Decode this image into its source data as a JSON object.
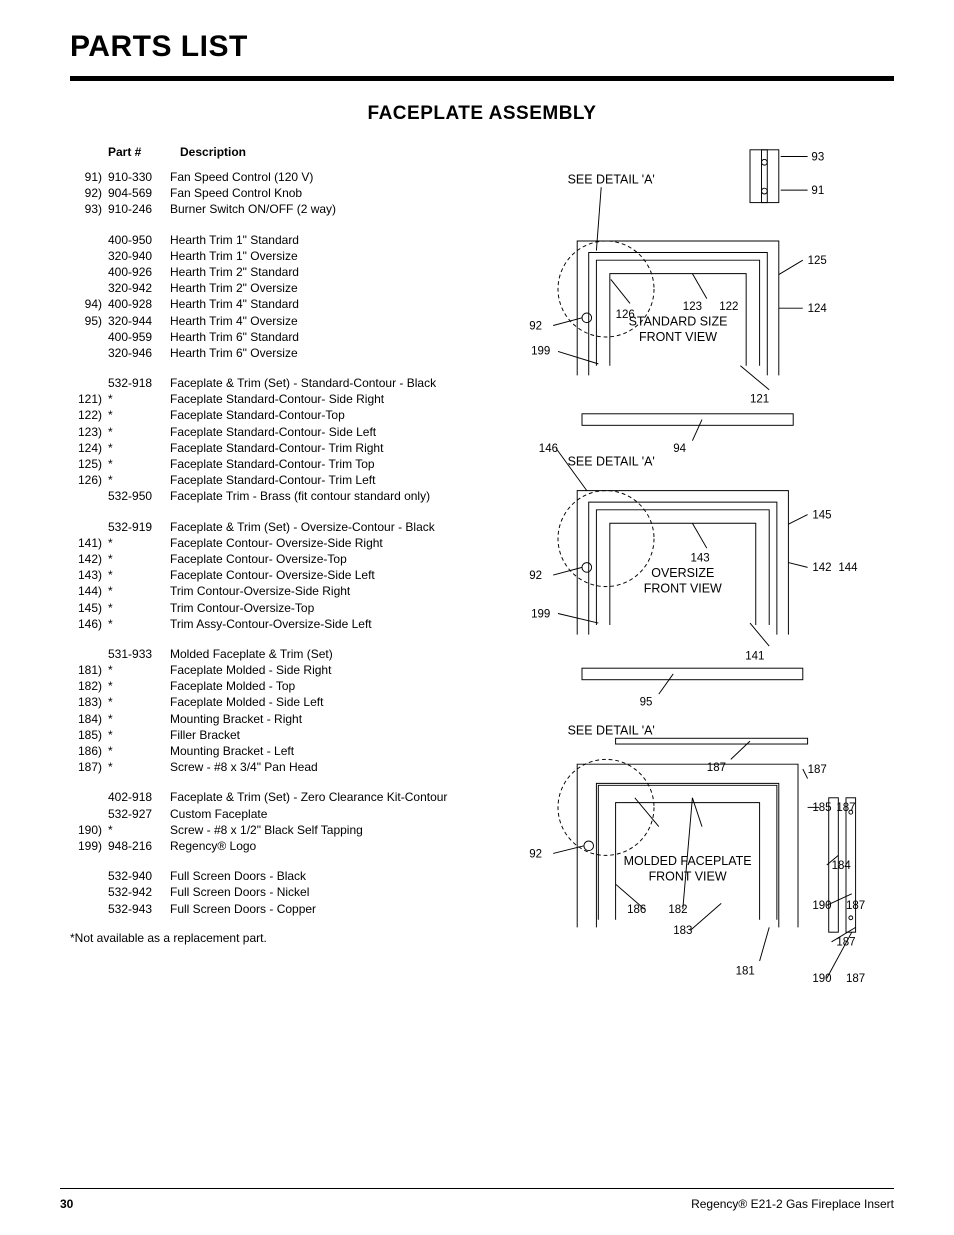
{
  "page_title": "PARTS LIST",
  "section_title": "FACEPLATE ASSEMBLY",
  "column_headers": {
    "part": "Part #",
    "desc": "Description"
  },
  "groups": [
    [
      {
        "idx": "91)",
        "part": "910-330",
        "desc": "Fan Speed Control (120 V)"
      },
      {
        "idx": "92)",
        "part": "904-569",
        "desc": "Fan Speed Control Knob"
      },
      {
        "idx": "93)",
        "part": "910-246",
        "desc": "Burner Switch ON/OFF (2 way)"
      }
    ],
    [
      {
        "idx": "",
        "part": "400-950",
        "desc": "Hearth Trim 1\" Standard"
      },
      {
        "idx": "",
        "part": "320-940",
        "desc": "Hearth Trim 1\" Oversize"
      },
      {
        "idx": "",
        "part": "400-926",
        "desc": "Hearth Trim 2\" Standard"
      },
      {
        "idx": "",
        "part": "320-942",
        "desc": "Hearth Trim 2\" Oversize"
      },
      {
        "idx": "94)",
        "part": "400-928",
        "desc": "Hearth Trim 4\" Standard"
      },
      {
        "idx": "95)",
        "part": "320-944",
        "desc": "Hearth Trim 4\" Oversize"
      },
      {
        "idx": "",
        "part": "400-959",
        "desc": "Hearth Trim 6\" Standard"
      },
      {
        "idx": "",
        "part": "320-946",
        "desc": "Hearth Trim 6\" Oversize"
      }
    ],
    [
      {
        "idx": "",
        "part": "532-918",
        "desc": "Faceplate & Trim (Set) - Standard-Contour - Black"
      },
      {
        "idx": "121)",
        "part": "*",
        "desc": "Faceplate Standard-Contour- Side Right"
      },
      {
        "idx": "122)",
        "part": "*",
        "desc": "Faceplate Standard-Contour-Top"
      },
      {
        "idx": "123)",
        "part": "*",
        "desc": "Faceplate Standard-Contour- Side Left"
      },
      {
        "idx": "124)",
        "part": "*",
        "desc": "Faceplate Standard-Contour- Trim Right"
      },
      {
        "idx": "125)",
        "part": "*",
        "desc": "Faceplate Standard-Contour- Trim Top"
      },
      {
        "idx": "126)",
        "part": "*",
        "desc": "Faceplate Standard-Contour- Trim Left"
      },
      {
        "idx": "",
        "part": "532-950",
        "desc": "Faceplate Trim - Brass (fit contour standard only)"
      }
    ],
    [
      {
        "idx": "",
        "part": "532-919",
        "desc": "Faceplate & Trim (Set) - Oversize-Contour - Black"
      },
      {
        "idx": "141)",
        "part": "*",
        "desc": "Faceplate Contour- Oversize-Side Right"
      },
      {
        "idx": "142)",
        "part": "*",
        "desc": "Faceplate Contour- Oversize-Top"
      },
      {
        "idx": "143)",
        "part": "*",
        "desc": "Faceplate Contour- Oversize-Side Left"
      },
      {
        "idx": "144)",
        "part": "*",
        "desc": "Trim Contour-Oversize-Side Right"
      },
      {
        "idx": "145)",
        "part": "*",
        "desc": "Trim Contour-Oversize-Top"
      },
      {
        "idx": "146)",
        "part": "*",
        "desc": "Trim Assy-Contour-Oversize-Side Left"
      }
    ],
    [
      {
        "idx": "",
        "part": "531-933",
        "desc": "Molded Faceplate & Trim (Set)"
      },
      {
        "idx": "181)",
        "part": "*",
        "desc": "Faceplate Molded - Side Right"
      },
      {
        "idx": "182)",
        "part": "*",
        "desc": "Faceplate Molded - Top"
      },
      {
        "idx": "183)",
        "part": "*",
        "desc": "Faceplate Molded - Side Left"
      },
      {
        "idx": "184)",
        "part": "*",
        "desc": "Mounting Bracket - Right"
      },
      {
        "idx": "185)",
        "part": "*",
        "desc": "Filler Bracket"
      },
      {
        "idx": "186)",
        "part": "*",
        "desc": "Mounting Bracket - Left"
      },
      {
        "idx": "187)",
        "part": "*",
        "desc": "Screw - #8 x 3/4\" Pan Head"
      }
    ],
    [
      {
        "idx": "",
        "part": "402-918",
        "desc": "Faceplate & Trim (Set) - Zero Clearance Kit-Contour"
      },
      {
        "idx": "",
        "part": "532-927",
        "desc": "Custom Faceplate"
      },
      {
        "idx": "190)",
        "part": "*",
        "desc": "Screw - #8 x 1/2\" Black Self Tapping"
      },
      {
        "idx": "199)",
        "part": "948-216",
        "desc": "Regency® Logo"
      }
    ],
    [
      {
        "idx": "",
        "part": "532-940",
        "desc": "Full Screen Doors - Black"
      },
      {
        "idx": "",
        "part": "532-942",
        "desc": "Full Screen Doors - Nickel"
      },
      {
        "idx": "",
        "part": "532-943",
        "desc": "Full Screen Doors - Copper"
      }
    ]
  ],
  "footnote": "*Not available as a replacement part.",
  "diagram": {
    "stroke": "#000000",
    "stroke_width": 1,
    "dash": "4 3",
    "font_family": "Arial",
    "label_fontsize": 12,
    "caption_fontsize": 13,
    "captions": {
      "detail_a": "SEE DETAIL 'A'",
      "std": "STANDARD SIZE",
      "std2": "FRONT VIEW",
      "ovr": "OVERSIZE",
      "ovr2": "FRONT VIEW",
      "mold": "MOLDED FACEPLATE",
      "mold2": "FRONT VIEW"
    },
    "callouts": {
      "top": [
        "93",
        "91",
        "125",
        "124",
        "92",
        "123",
        "122",
        "126",
        "199",
        "121",
        "94",
        "146"
      ],
      "mid": [
        "145",
        "92",
        "142",
        "144",
        "143",
        "199",
        "141",
        "95"
      ],
      "bot": [
        "187",
        "187",
        "185",
        "187",
        "92",
        "184",
        "186",
        "182",
        "190",
        "187",
        "183",
        "187",
        "181",
        "190",
        "187"
      ]
    }
  },
  "footer": {
    "page": "30",
    "doc": "Regency® E21-2 Gas Fireplace Insert"
  }
}
